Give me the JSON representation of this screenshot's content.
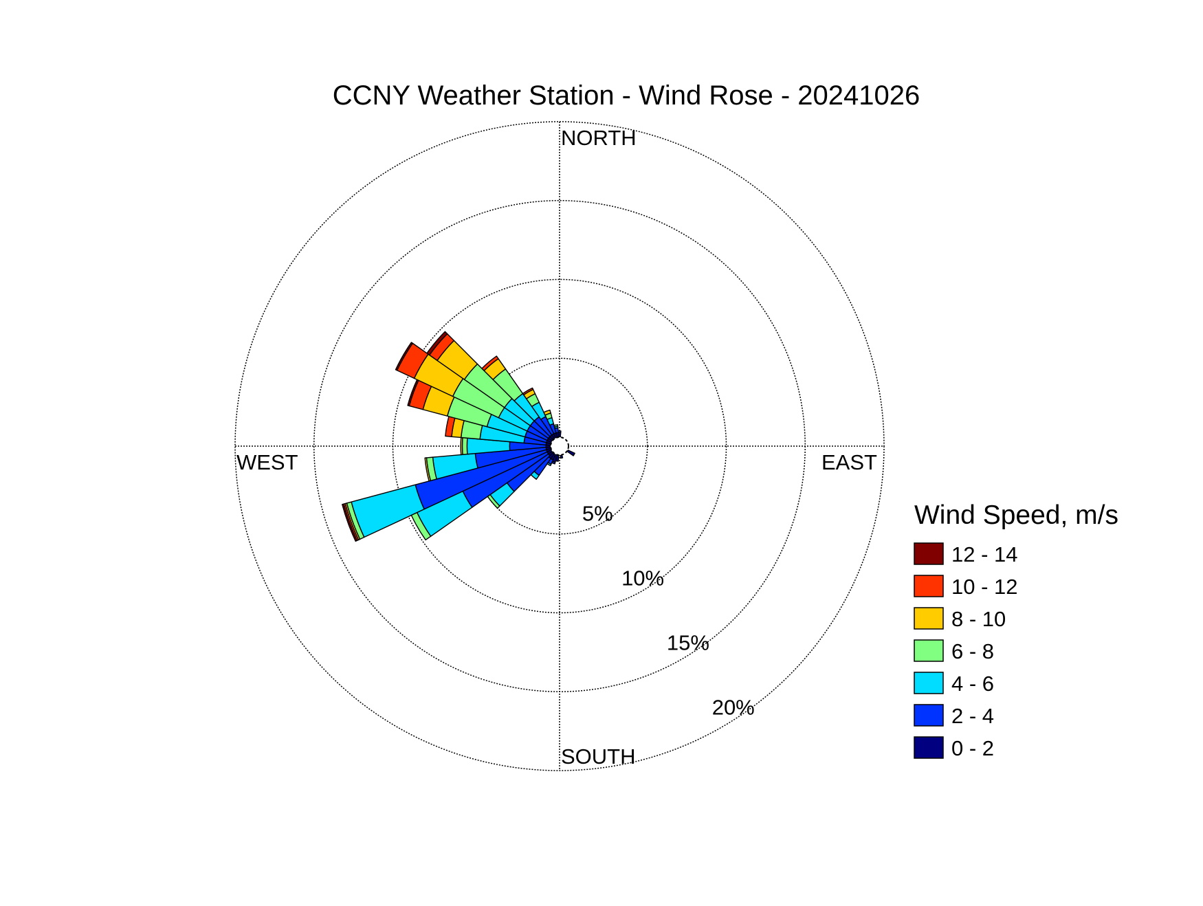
{
  "chart_data": {
    "type": "wind-rose",
    "title": "CCNY Weather Station - Wind Rose - 20241026",
    "direction_labels": {
      "north": "NORTH",
      "south": "SOUTH",
      "east": "EAST",
      "west": "WEST"
    },
    "radial_max": 20,
    "radial_ticks": [
      5,
      10,
      15,
      20
    ],
    "radial_tick_labels": [
      "5%",
      "10%",
      "15%",
      "20%"
    ],
    "grid": true,
    "legend": {
      "title": "Wind Speed, m/s",
      "placement": "right",
      "entries": [
        {
          "label": "12 - 14",
          "color": "#800000"
        },
        {
          "label": "10 - 12",
          "color": "#ff3300"
        },
        {
          "label": "8 - 10",
          "color": "#ffcc00"
        },
        {
          "label": "6 - 8",
          "color": "#80ff80"
        },
        {
          "label": "4 - 6",
          "color": "#00ddff"
        },
        {
          "label": "2 - 4",
          "color": "#0033ff"
        },
        {
          "label": "0 - 2",
          "color": "#000080"
        }
      ]
    },
    "speed_bins": [
      "0 - 2",
      "2 - 4",
      "4 - 6",
      "6 - 8",
      "8 - 10",
      "10 - 12",
      "12 - 14"
    ],
    "bin_colors": [
      "#000080",
      "#0033ff",
      "#00ddff",
      "#80ff80",
      "#ffcc00",
      "#ff3300",
      "#800000"
    ],
    "sector_width_deg": 10,
    "sectors": [
      {
        "direction": 250,
        "values": [
          0.3,
          8.6,
          4.2,
          0.3,
          0.1,
          0.1,
          0.1
        ]
      },
      {
        "direction": 240,
        "values": [
          0.3,
          5.9,
          3.2,
          0.4,
          0.0,
          0.0,
          0.0
        ]
      },
      {
        "direction": 230,
        "values": [
          0.3,
          3.2,
          1.3,
          0.2,
          0.0,
          0.0,
          0.0
        ]
      },
      {
        "direction": 220,
        "values": [
          0.4,
          1.3,
          0.3,
          0.0,
          0.0,
          0.0,
          0.0
        ]
      },
      {
        "direction": 210,
        "values": [
          0.4,
          0.3,
          0.1,
          0.0,
          0.0,
          0.0,
          0.0
        ]
      },
      {
        "direction": 200,
        "values": [
          0.5,
          0.1,
          0.0,
          0.0,
          0.0,
          0.0,
          0.0
        ]
      },
      {
        "direction": 190,
        "values": [
          0.4,
          0.0,
          0.0,
          0.0,
          0.0,
          0.0,
          0.0
        ]
      },
      {
        "direction": 170,
        "values": [
          0.2,
          0.0,
          0.0,
          0.0,
          0.0,
          0.0,
          0.0
        ]
      },
      {
        "direction": 120,
        "values": [
          0.5,
          0.0,
          0.0,
          0.0,
          0.0,
          0.0,
          0.0
        ]
      },
      {
        "direction": 260,
        "values": [
          0.3,
          4.5,
          2.7,
          0.4,
          0.1,
          0.0,
          0.0
        ]
      },
      {
        "direction": 270,
        "values": [
          0.3,
          2.3,
          2.7,
          0.3,
          0.1,
          0.0,
          0.0
        ]
      },
      {
        "direction": 280,
        "values": [
          0.3,
          1.4,
          2.8,
          1.2,
          0.6,
          0.4,
          0.0
        ]
      },
      {
        "direction": 290,
        "values": [
          0.3,
          1.4,
          2.5,
          2.6,
          1.6,
          0.9,
          0.1
        ]
      },
      {
        "direction": 300,
        "values": [
          0.3,
          1.4,
          2.0,
          3.2,
          2.7,
          1.2,
          0.1
        ]
      },
      {
        "direction": 310,
        "values": [
          0.3,
          1.4,
          2.0,
          3.1,
          2.1,
          0.6,
          0.2
        ]
      },
      {
        "direction": 320,
        "values": [
          0.3,
          1.4,
          1.8,
          1.9,
          0.8,
          0.2,
          0.0
        ]
      },
      {
        "direction": 330,
        "values": [
          0.3,
          1.2,
          1.0,
          0.6,
          0.3,
          0.1,
          0.0
        ]
      },
      {
        "direction": 340,
        "values": [
          0.3,
          0.6,
          0.4,
          0.3,
          0.2,
          0.0,
          0.0
        ]
      },
      {
        "direction": 350,
        "values": [
          0.3,
          0.3,
          0.1,
          0.1,
          0.0,
          0.0,
          0.0
        ]
      },
      {
        "direction": 0,
        "values": [
          0.3,
          0.1,
          0.0,
          0.0,
          0.0,
          0.0,
          0.0
        ]
      }
    ]
  }
}
